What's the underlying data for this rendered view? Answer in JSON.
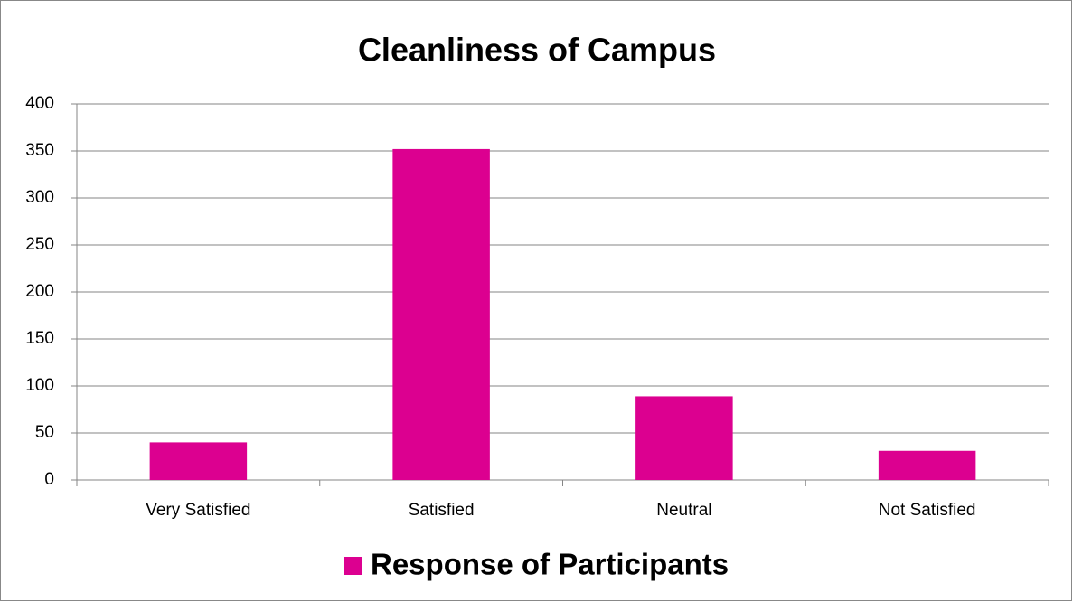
{
  "chart_data": {
    "type": "bar",
    "title": "Cleanliness of Campus",
    "categories": [
      "Very Satisfied",
      "Satisfied",
      "Neutral",
      "Not Satisfied"
    ],
    "series": [
      {
        "name": "Response of Participants",
        "color": "#dc0090",
        "values": [
          40,
          352,
          89,
          31
        ]
      }
    ],
    "ylim": [
      0,
      400
    ],
    "yticks": [
      0,
      50,
      100,
      150,
      200,
      250,
      300,
      350,
      400
    ],
    "grid": true,
    "legend": "bottom"
  }
}
